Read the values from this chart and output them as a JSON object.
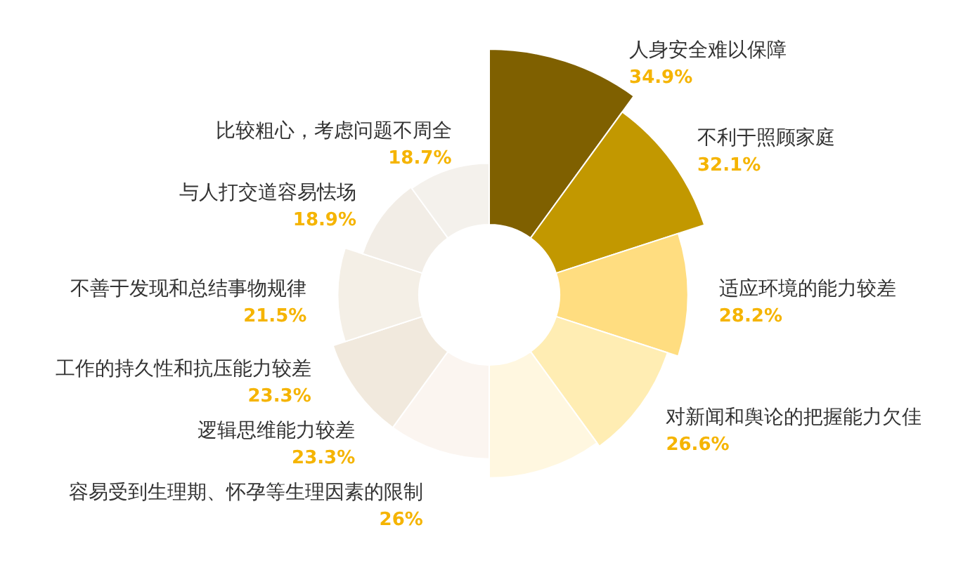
{
  "chart_data": {
    "type": "other",
    "categories": [
      "人身安全难以保障",
      "不利于照顾家庭",
      "适应环境的能力较差",
      "对新闻和舆论的把握能力欠佳",
      "容易受到生理期、怀孕等生理因素的限制",
      "逻辑思维能力较差",
      "工作的持久性和抗压能力较差",
      "不善于发现和总结事物规律",
      "与人打交道容易怯场",
      "比较粗心，考虑问题不周全"
    ],
    "values": [
      34.9,
      32.1,
      28.2,
      26.6,
      26,
      23.3,
      23.3,
      21.5,
      18.9,
      18.7
    ],
    "value_labels": [
      "34.9%",
      "32.1%",
      "28.2%",
      "26.6%",
      "26%",
      "23.3%",
      "23.3%",
      "21.5%",
      "18.9%",
      "18.7%"
    ],
    "colors": [
      "#7f6000",
      "#c29800",
      "#ffdd80",
      "#ffedb3",
      "#fff7e0",
      "#fbf5f0",
      "#f1e9dd",
      "#f4efe6",
      "#f2ede6",
      "#f4f1ec"
    ]
  }
}
